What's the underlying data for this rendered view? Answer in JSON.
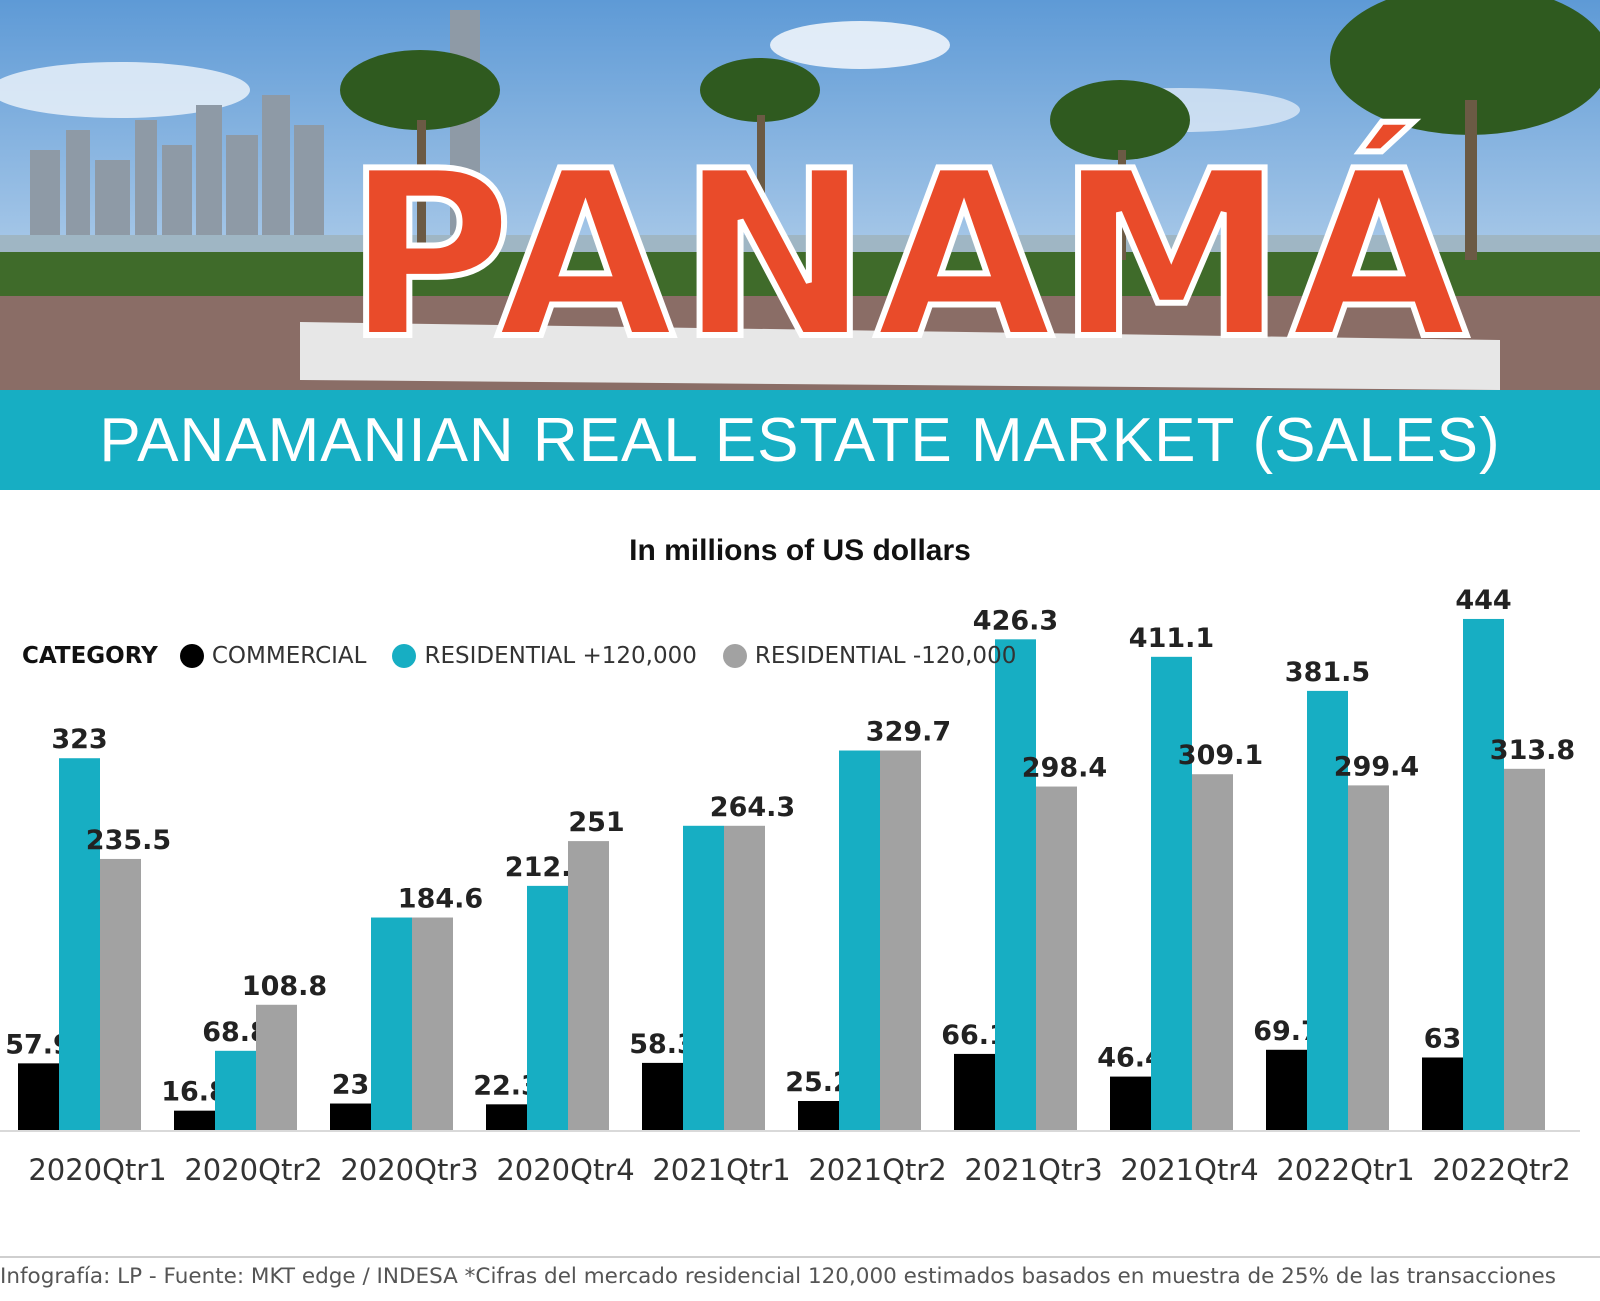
{
  "banner": {
    "title": "PANAMANIAN REAL ESTATE MARKET (SALES)"
  },
  "hero": {
    "sign_text": "PANAMÁ"
  },
  "colors": {
    "commercial": "#000000",
    "residential_plus": "#17aec3",
    "residential_minus": "#a2a2a2",
    "banner": "#17aec3"
  },
  "legend": {
    "title": "CATEGORY",
    "items": [
      {
        "label": "COMMERCIAL",
        "color": "#000000"
      },
      {
        "label": "RESIDENTIAL +120,000",
        "color": "#17aec3"
      },
      {
        "label": "RESIDENTIAL  -120,000",
        "color": "#a2a2a2"
      }
    ]
  },
  "chart_data": {
    "type": "bar",
    "title": "",
    "subtitle": "In millions of US dollars",
    "xlabel": "",
    "ylabel": "",
    "ylim": [
      0,
      444
    ],
    "grid": false,
    "legend_position": "top-left",
    "categories": [
      "2020Qtr1",
      "2020Qtr2",
      "2020Qtr3",
      "2020Qtr4",
      "2021Qtr1",
      "2021Qtr2",
      "2021Qtr3",
      "2021Qtr4",
      "2022Qtr1",
      "2022Qtr2"
    ],
    "series": [
      {
        "name": "COMMERCIAL",
        "values": [
          57.9,
          16.8,
          23,
          22.3,
          58.3,
          25.2,
          66.1,
          46.4,
          69.7,
          63
        ]
      },
      {
        "name": "RESIDENTIAL +120,000",
        "values": [
          323,
          68.8,
          184.6,
          212.1,
          264.3,
          329.7,
          426.3,
          411.1,
          381.5,
          444
        ]
      },
      {
        "name": "RESIDENTIAL  -120,000",
        "values": [
          235.5,
          108.8,
          184.6,
          251,
          264.3,
          329.7,
          298.4,
          309.1,
          299.4,
          313.8
        ]
      }
    ],
    "value_labels": [
      [
        "57.9",
        "16.8",
        "23",
        "22.3",
        "58.3",
        "25.2",
        "66.1",
        "46.4",
        "69.7",
        "63"
      ],
      [
        "323",
        "68.8",
        "",
        "212.1",
        "",
        "",
        "426.3",
        "411.1",
        "381.5",
        "444"
      ],
      [
        "235.5",
        "108.8",
        "184.6",
        "251",
        "264.3",
        "329.7",
        "298.4",
        "309.1",
        "299.4",
        "313.8"
      ]
    ]
  },
  "footer": {
    "source": "Infografía: LP - Fuente: MKT edge / INDESA *Cifras del mercado residencial 120,000 estimados basados en muestra de 25% de las transacciones"
  }
}
